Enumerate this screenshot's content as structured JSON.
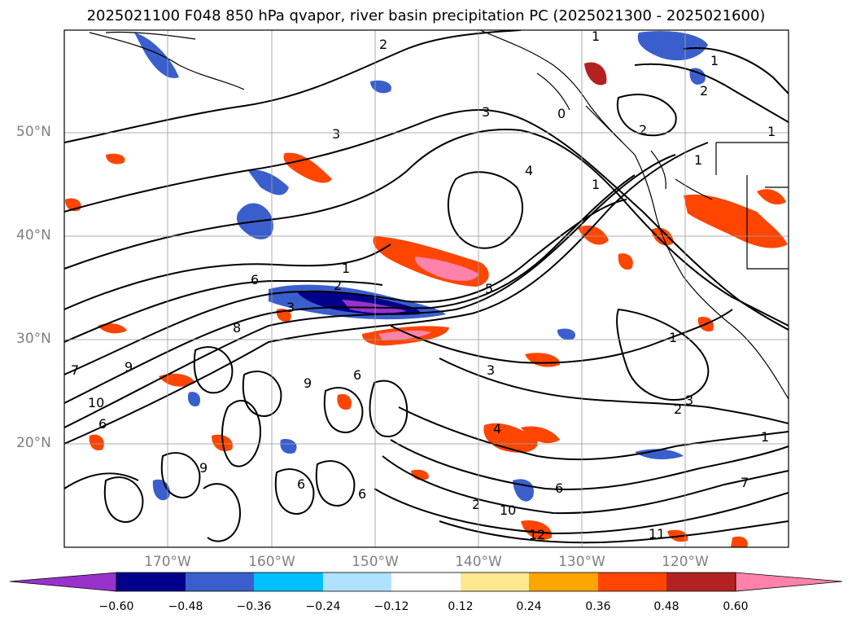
{
  "title": "2025021100 F048 850 hPa qvapor, river basin precipitation PC (2025021300 - 2025021600)",
  "lat_labels": [
    "50°N",
    "40°N",
    "30°N",
    "20°N"
  ],
  "lon_labels": [
    "170°W",
    "160°W",
    "150°W",
    "140°W",
    "130°W",
    "120°W"
  ],
  "colorbar": {
    "ticks": [
      "−0.60",
      "−0.48",
      "−0.36",
      "−0.24",
      "−0.12",
      "0.12",
      "0.24",
      "0.36",
      "0.48",
      "0.60"
    ],
    "colors": [
      "#9932cc",
      "#00008b",
      "#3a5fcd",
      "#00bfff",
      "#b0e2ff",
      "#ffffff",
      "#ffe78f",
      "#ffa500",
      "#ff4500",
      "#b22222",
      "#ff82ab"
    ]
  },
  "contour_labels": [
    "2",
    "1",
    "1",
    "2",
    "1",
    "3",
    "3",
    "0",
    "2",
    "1",
    "1",
    "4",
    "1",
    "2",
    "6",
    "3",
    "5",
    "7",
    "8",
    "9",
    "9",
    "6",
    "3",
    "2",
    "3",
    "1",
    "4",
    "10",
    "6",
    "9",
    "6",
    "6",
    "10",
    "12",
    "11",
    "6",
    "7",
    "1",
    "2"
  ]
}
